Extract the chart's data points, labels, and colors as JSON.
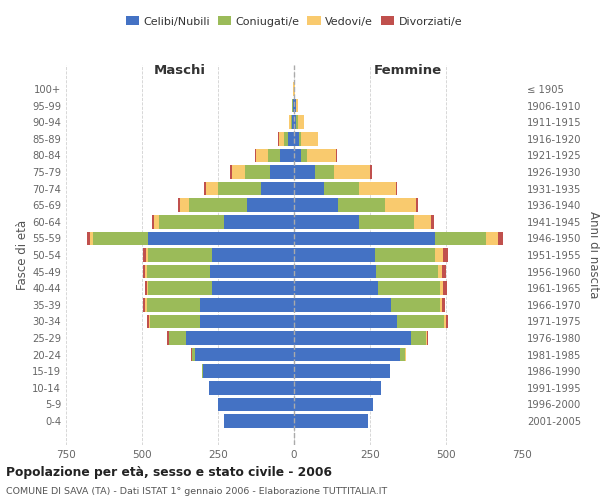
{
  "age_groups": [
    "0-4",
    "5-9",
    "10-14",
    "15-19",
    "20-24",
    "25-29",
    "30-34",
    "35-39",
    "40-44",
    "45-49",
    "50-54",
    "55-59",
    "60-64",
    "65-69",
    "70-74",
    "75-79",
    "80-84",
    "85-89",
    "90-94",
    "95-99",
    "100+"
  ],
  "birth_years": [
    "2001-2005",
    "1996-2000",
    "1991-1995",
    "1986-1990",
    "1981-1985",
    "1976-1980",
    "1971-1975",
    "1966-1970",
    "1961-1965",
    "1956-1960",
    "1951-1955",
    "1946-1950",
    "1941-1945",
    "1936-1940",
    "1931-1935",
    "1926-1930",
    "1921-1925",
    "1916-1920",
    "1911-1915",
    "1906-1910",
    "≤ 1905"
  ],
  "male_celibi": [
    230,
    250,
    280,
    300,
    325,
    355,
    310,
    310,
    270,
    275,
    270,
    480,
    230,
    155,
    110,
    80,
    45,
    20,
    7,
    4,
    1
  ],
  "male_coniugati": [
    0,
    0,
    0,
    2,
    12,
    55,
    165,
    175,
    210,
    210,
    210,
    180,
    215,
    190,
    140,
    80,
    40,
    12,
    4,
    2,
    0
  ],
  "male_vedovi": [
    0,
    0,
    0,
    0,
    0,
    2,
    2,
    5,
    3,
    5,
    8,
    10,
    15,
    30,
    40,
    45,
    40,
    18,
    6,
    2,
    1
  ],
  "male_divorziati": [
    0,
    0,
    0,
    0,
    2,
    5,
    5,
    7,
    8,
    8,
    10,
    10,
    8,
    7,
    5,
    5,
    4,
    3,
    0,
    0,
    0
  ],
  "female_celibi": [
    245,
    260,
    285,
    315,
    350,
    385,
    340,
    320,
    275,
    270,
    265,
    465,
    215,
    145,
    100,
    70,
    22,
    15,
    8,
    5,
    1
  ],
  "female_coniugati": [
    0,
    0,
    0,
    2,
    15,
    50,
    155,
    160,
    205,
    205,
    200,
    165,
    180,
    155,
    115,
    60,
    22,
    8,
    4,
    1,
    0
  ],
  "female_vedovi": [
    0,
    0,
    0,
    0,
    2,
    3,
    5,
    8,
    10,
    12,
    25,
    40,
    55,
    100,
    120,
    120,
    95,
    55,
    22,
    6,
    2
  ],
  "female_divorziati": [
    0,
    0,
    0,
    0,
    2,
    3,
    5,
    8,
    12,
    12,
    15,
    18,
    10,
    8,
    5,
    5,
    4,
    2,
    0,
    0,
    0
  ],
  "color_celibi": "#4472C4",
  "color_coniugati": "#9BBB59",
  "color_vedovi": "#F9CA6E",
  "color_divorziati": "#C0504D",
  "bg_color": "#FFFFFF",
  "grid_color": "#CCCCCC",
  "title": "Popolazione per età, sesso e stato civile - 2006",
  "subtitle": "COMUNE DI SAVA (TA) - Dati ISTAT 1° gennaio 2006 - Elaborazione TUTTITALIA.IT",
  "xlabel_left": "Maschi",
  "xlabel_right": "Femmine",
  "ylabel_left": "Fasce di età",
  "ylabel_right": "Anni di nascita",
  "xlim": 750
}
